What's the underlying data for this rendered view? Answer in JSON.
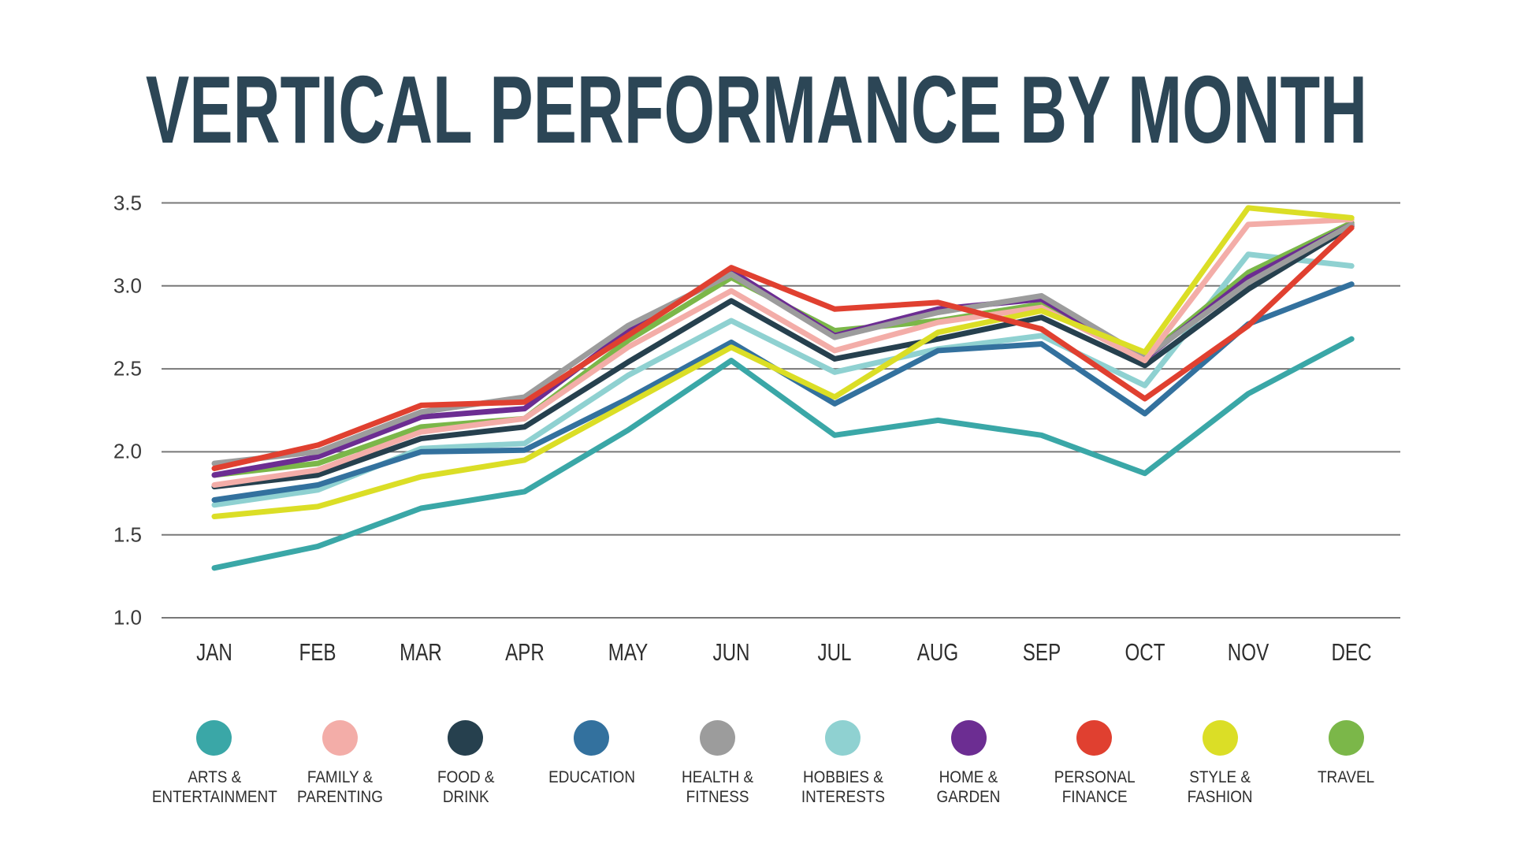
{
  "title": {
    "text": "VERTICAL PERFORMANCE BY MONTH",
    "color": "#2C4656"
  },
  "chart_data": {
    "type": "line",
    "title": "VERTICAL PERFORMANCE BY MONTH",
    "categories": [
      "JAN",
      "FEB",
      "MAR",
      "APR",
      "MAY",
      "JUN",
      "JUL",
      "AUG",
      "SEP",
      "OCT",
      "NOV",
      "DEC"
    ],
    "xlabel": "",
    "ylabel": "",
    "ylim": [
      1.0,
      3.5
    ],
    "ytick_labels": [
      "3.5",
      "3.0",
      "2.5",
      "2.0",
      "1.5",
      "1.0"
    ],
    "ytick_values": [
      3.5,
      3.0,
      2.5,
      2.0,
      1.5,
      1.0
    ],
    "grid": "horizontal",
    "gridline_color": "#787878",
    "axis_text_color": "#3a3a3a",
    "legend_position": "bottom",
    "line_width": 7,
    "series": [
      {
        "name": "ARTS & ENTERTAINMENT",
        "label_lines": [
          "ARTS &",
          "ENTERTAINMENT"
        ],
        "color": "#3AA7A7",
        "values": [
          1.3,
          1.43,
          1.66,
          1.76,
          2.13,
          2.55,
          2.1,
          2.19,
          2.1,
          1.87,
          2.35,
          2.68
        ]
      },
      {
        "name": "FAMILY & PARENTING",
        "label_lines": [
          "FAMILY &",
          "PARENTING"
        ],
        "color": "#F3ADA8",
        "values": [
          1.8,
          1.89,
          2.12,
          2.2,
          2.63,
          2.97,
          2.61,
          2.78,
          2.87,
          2.55,
          3.37,
          3.4
        ]
      },
      {
        "name": "FOOD & DRINK",
        "label_lines": [
          "FOOD &",
          "DRINK"
        ],
        "color": "#26404E",
        "values": [
          1.79,
          1.86,
          2.08,
          2.15,
          2.54,
          2.91,
          2.56,
          2.68,
          2.81,
          2.52,
          2.98,
          3.36
        ]
      },
      {
        "name": "EDUCATION",
        "label_lines": [
          "EDUCATION"
        ],
        "color": "#33719E",
        "values": [
          1.71,
          1.8,
          2.0,
          2.01,
          2.32,
          2.66,
          2.29,
          2.61,
          2.65,
          2.23,
          2.77,
          3.01
        ]
      },
      {
        "name": "HEALTH & FITNESS",
        "label_lines": [
          "HEALTH &",
          "FITNESS"
        ],
        "color": "#9C9C9C",
        "values": [
          1.93,
          2.0,
          2.24,
          2.33,
          2.76,
          3.07,
          2.69,
          2.84,
          2.94,
          2.57,
          3.02,
          3.37
        ]
      },
      {
        "name": "HOBBIES & INTERESTS",
        "label_lines": [
          "HOBBIES &",
          "INTERESTS"
        ],
        "color": "#8FD1D1",
        "values": [
          1.68,
          1.77,
          2.02,
          2.05,
          2.46,
          2.79,
          2.48,
          2.62,
          2.7,
          2.4,
          3.19,
          3.12
        ]
      },
      {
        "name": "HOME & GARDEN",
        "label_lines": [
          "HOME &",
          "GARDEN"
        ],
        "color": "#6C2D92",
        "values": [
          1.86,
          1.97,
          2.21,
          2.26,
          2.73,
          3.09,
          2.7,
          2.86,
          2.92,
          2.56,
          3.05,
          3.37
        ]
      },
      {
        "name": "PERSONAL FINANCE",
        "label_lines": [
          "PERSONAL",
          "FINANCE"
        ],
        "color": "#E04030",
        "values": [
          1.9,
          2.04,
          2.28,
          2.3,
          2.7,
          3.11,
          2.86,
          2.9,
          2.74,
          2.32,
          2.76,
          3.35
        ]
      },
      {
        "name": "STYLE & FASHION",
        "label_lines": [
          "STYLE &",
          "FASHION"
        ],
        "color": "#DBDE26",
        "values": [
          1.61,
          1.67,
          1.85,
          1.95,
          2.29,
          2.63,
          2.33,
          2.72,
          2.85,
          2.6,
          3.47,
          3.41
        ]
      },
      {
        "name": "TRAVEL",
        "label_lines": [
          "TRAVEL"
        ],
        "color": "#7BB749",
        "values": [
          1.86,
          1.93,
          2.15,
          2.2,
          2.67,
          3.05,
          2.73,
          2.79,
          2.89,
          2.57,
          3.08,
          3.38
        ]
      }
    ],
    "draw_order": [
      5,
      3,
      2,
      9,
      6,
      4,
      1,
      8,
      7,
      0
    ]
  }
}
